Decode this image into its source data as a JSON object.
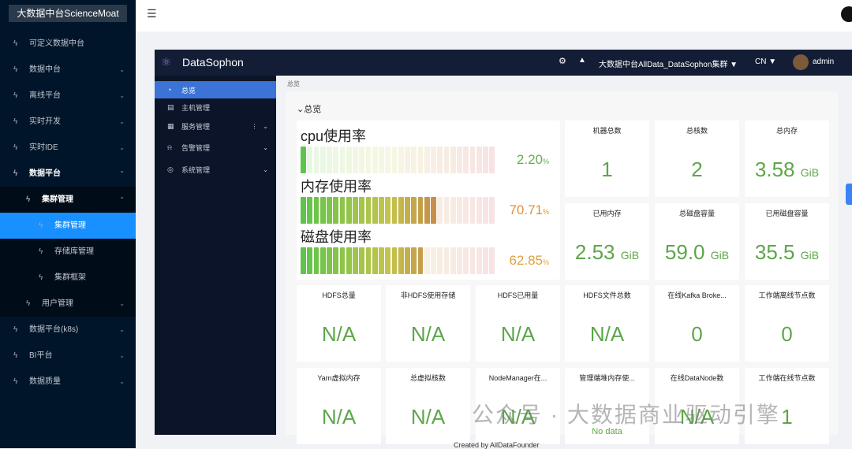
{
  "sidebar": {
    "title": "大数据中台ScienceMoat",
    "items": [
      {
        "label": "可定义数据中台"
      },
      {
        "label": "数据中台"
      },
      {
        "label": "离线平台"
      },
      {
        "label": "实时开发"
      },
      {
        "label": "实时IDE"
      },
      {
        "label": "数据平台"
      },
      {
        "label": "集群管理"
      },
      {
        "label": "集群管理"
      },
      {
        "label": "存储库管理"
      },
      {
        "label": "集群框架"
      },
      {
        "label": "用户管理"
      },
      {
        "label": "数据平台(k8s)"
      },
      {
        "label": "BI平台"
      },
      {
        "label": "数据质量"
      }
    ]
  },
  "inner": {
    "brand": "DataSophon",
    "cluster": "大数据中台AllData_DataSophon集群",
    "lang": "CN",
    "user": "admin",
    "menu": [
      {
        "label": "总览"
      },
      {
        "label": "主机管理"
      },
      {
        "label": "服务管理"
      },
      {
        "label": "告警管理"
      },
      {
        "label": "系统管理"
      }
    ],
    "breadcrumb": "总览",
    "section": "总览",
    "usage": [
      {
        "label": "cpu使用率",
        "value": "2.20",
        "percent": 2.2,
        "color": "#6aaa4e"
      },
      {
        "label": "内存使用率",
        "value": "70.71",
        "percent": 70.71,
        "color": "#e0913a"
      },
      {
        "label": "磁盘使用率",
        "value": "62.85",
        "percent": 62.85,
        "color": "#e0a040"
      }
    ],
    "pct_unit": "%",
    "stats": [
      {
        "title": "机器总数",
        "value": "1",
        "unit": ""
      },
      {
        "title": "总核数",
        "value": "2",
        "unit": ""
      },
      {
        "title": "总内存",
        "value": "3.58",
        "unit": "GiB"
      },
      {
        "title": "已用内存",
        "value": "2.53",
        "unit": "GiB"
      },
      {
        "title": "总磁盘容量",
        "value": "59.0",
        "unit": "GiB"
      },
      {
        "title": "已用磁盘容量",
        "value": "35.5",
        "unit": "GiB"
      }
    ],
    "row3": [
      {
        "title": "HDFS总量",
        "value": "N/A"
      },
      {
        "title": "非HDFS使用存储",
        "value": "N/A"
      },
      {
        "title": "HDFS已用量",
        "value": "N/A"
      },
      {
        "title": "HDFS文件总数",
        "value": "N/A"
      },
      {
        "title": "在线Kafka Broke...",
        "value": "0"
      },
      {
        "title": "工作端离线节点数",
        "value": "0"
      }
    ],
    "row4": [
      {
        "title": "Yarn虚拟内存",
        "value": "N/A"
      },
      {
        "title": "总虚拟核数",
        "value": "N/A"
      },
      {
        "title": "NodeManager在...",
        "value": "N/A"
      },
      {
        "title": "管理端堆内存使...",
        "value": "No data"
      },
      {
        "title": "在线DataNode数",
        "value": "N/A"
      },
      {
        "title": "工作端在线节点数",
        "value": "1"
      }
    ]
  },
  "footer": "Created by AllDataFounder",
  "watermark": "公众号 · 大数据商业驱动引擎"
}
